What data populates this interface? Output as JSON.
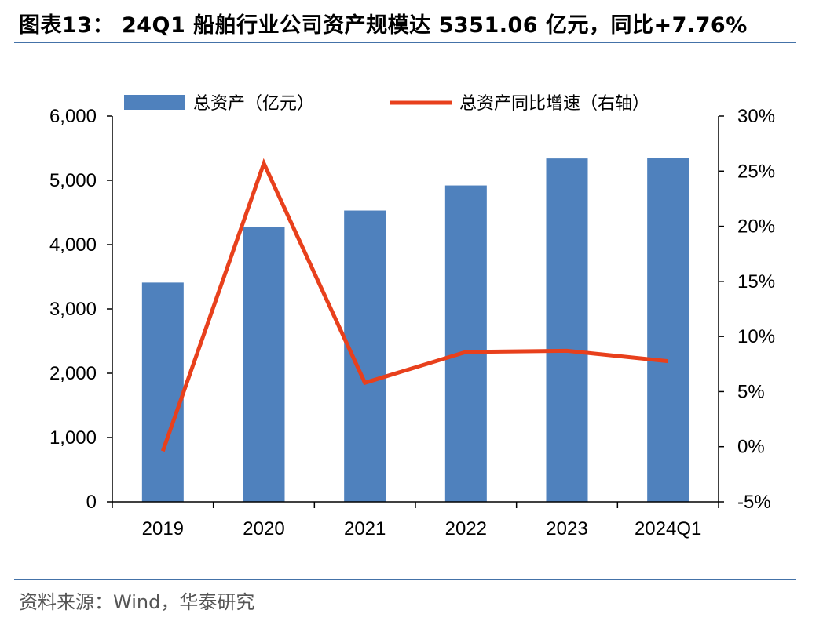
{
  "header": {
    "title": "图表13： 24Q1 船舶行业公司资产规模达 5351.06 亿元，同比+7.76%"
  },
  "footer": {
    "source": "资料来源：Wind，华泰研究"
  },
  "chart_data": {
    "type": "bar",
    "title": "图表13： 24Q1 船舶行业公司资产规模达 5351.06 亿元，同比+7.76%",
    "categories": [
      "2019",
      "2020",
      "2021",
      "2022",
      "2023",
      "2024Q1"
    ],
    "series": [
      {
        "name": "总资产（亿元）",
        "type": "bar",
        "axis": "left",
        "color": "#4f81bd",
        "values": [
          3410,
          4280,
          4530,
          4920,
          5340,
          5351.06
        ]
      },
      {
        "name": "总资产同比增速（右轴）",
        "type": "line",
        "axis": "right",
        "color": "#e8401c",
        "values": [
          -0.004,
          0.257,
          0.058,
          0.086,
          0.087,
          0.0776
        ]
      }
    ],
    "left_axis": {
      "ylim": [
        0,
        6000
      ],
      "ticks": [
        0,
        1000,
        2000,
        3000,
        4000,
        5000,
        6000
      ],
      "tick_labels": [
        "0",
        "1,000",
        "2,000",
        "3,000",
        "4,000",
        "5,000",
        "6,000"
      ]
    },
    "right_axis": {
      "ylim": [
        -0.05,
        0.3
      ],
      "ticks": [
        -0.05,
        0,
        0.05,
        0.1,
        0.15,
        0.2,
        0.25,
        0.3
      ],
      "tick_labels": [
        "-5%",
        "0%",
        "5%",
        "10%",
        "15%",
        "20%",
        "25%",
        "30%"
      ]
    },
    "grid": false,
    "legend_position": "top"
  }
}
